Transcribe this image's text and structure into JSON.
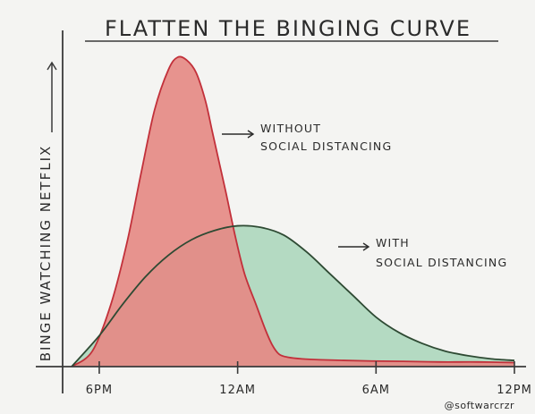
{
  "chart_data": {
    "type": "area",
    "title": "FLATTEN THE BINGING CURVE",
    "ylabel": "BINGE WATCHING NETFLIX",
    "xlabel": "",
    "x_ticks": [
      "6PM",
      "12AM",
      "6AM",
      "12PM"
    ],
    "x_tick_hours": [
      0,
      6,
      12,
      18
    ],
    "xlim": [
      -1.2,
      18
    ],
    "ylim": [
      0,
      100
    ],
    "series": [
      {
        "name": "WITHOUT SOCIAL DISTANCING",
        "color": "#e58a86",
        "line_color": "#c2303a",
        "x": [
          -1.2,
          -0.3,
          0.5,
          1.2,
          1.8,
          2.4,
          3.0,
          3.4,
          3.8,
          4.2,
          4.6,
          4.9,
          5.2,
          5.5,
          5.9,
          6.3,
          6.8,
          7.2,
          7.5,
          7.8,
          8.2,
          8.8,
          9.6,
          10.6,
          11.8,
          13.2,
          14.8,
          16.4,
          18.0
        ],
        "values": [
          0,
          5,
          20,
          40,
          62,
          83,
          96,
          100,
          99,
          95,
          86,
          76,
          66,
          56,
          42,
          30,
          20,
          12,
          7,
          4,
          3,
          2.5,
          2.2,
          2,
          1.8,
          1.7,
          1.5,
          1.5,
          1.3
        ]
      },
      {
        "name": "WITH SOCIAL DISTANCING",
        "color": "#a8d5ba",
        "line_color": "#2e4a33",
        "x": [
          -1.2,
          0.0,
          1.0,
          2.0,
          3.0,
          4.0,
          5.0,
          6.0,
          7.0,
          8.0,
          9.0,
          10.0,
          11.0,
          12.0,
          13.0,
          14.0,
          15.0,
          16.0,
          17.0,
          18.0
        ],
        "values": [
          0,
          10,
          20,
          29,
          36,
          41,
          44,
          45.5,
          45,
          42.5,
          37,
          30,
          23,
          16,
          11,
          7.5,
          5,
          3.5,
          2.5,
          2
        ]
      }
    ],
    "annotations": [
      {
        "lines": [
          "WITHOUT",
          "SOCIAL DISTANCING"
        ],
        "series": 0
      },
      {
        "lines": [
          "WITH",
          "SOCIAL DISTANCING"
        ],
        "series": 1
      }
    ],
    "signature": "@softwarcrzr",
    "grid": false,
    "legend": "none"
  }
}
